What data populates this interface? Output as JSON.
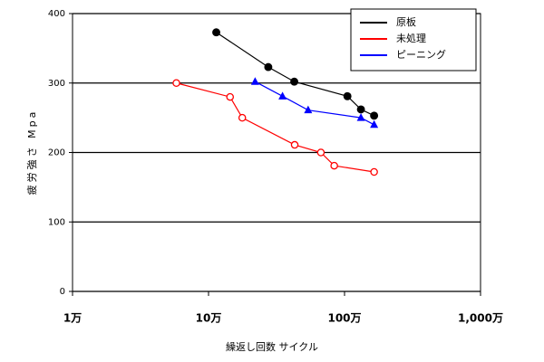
{
  "chart_data": {
    "type": "line",
    "x_label": "繰返し回数 サイクル",
    "y_label": "疲労強さ Mpa",
    "xscale": "log",
    "xlim": [
      10000,
      10000000
    ],
    "xticks": [
      {
        "value": 10000,
        "label": "1万"
      },
      {
        "value": 100000,
        "label": "10万"
      },
      {
        "value": 1000000,
        "label": "100万"
      },
      {
        "value": 10000000,
        "label": "1,000万"
      }
    ],
    "ylim": [
      0,
      400
    ],
    "yticks": [
      0,
      100,
      200,
      300,
      400
    ],
    "grid": true,
    "legend": "upper right",
    "series": [
      {
        "name": "原板",
        "color": "#000000",
        "marker": "filled-circle",
        "x": [
          114000,
          275000,
          427000,
          1050000,
          1320000,
          1650000
        ],
        "values": [
          373,
          323,
          302,
          281,
          262,
          253
        ]
      },
      {
        "name": "未処理",
        "color": "#ff0000",
        "marker": "open-circle",
        "x": [
          58000,
          144000,
          177000,
          430000,
          670000,
          840000,
          1650000
        ],
        "values": [
          300,
          280,
          250,
          211,
          200,
          181,
          172
        ]
      },
      {
        "name": "ピーニング",
        "color": "#0000ff",
        "marker": "filled-triangle",
        "x": [
          220000,
          350000,
          540000,
          1320000,
          1650000
        ],
        "values": [
          302,
          281,
          261,
          250,
          240
        ]
      }
    ]
  }
}
